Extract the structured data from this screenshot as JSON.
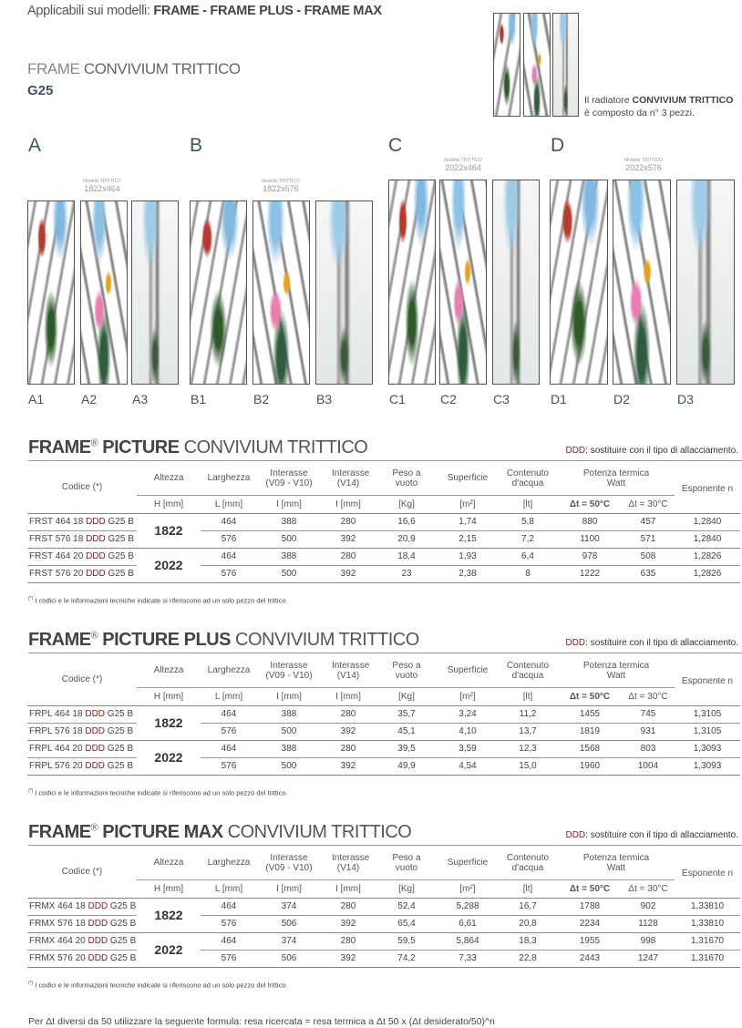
{
  "header": {
    "applicable_prefix": "Applicabili sui modelli: ",
    "applicable_models": "FRAME - FRAME PLUS - FRAME MAX",
    "title_light": "FRAME ",
    "title_bold": "CONVIVIUM TRITTICO",
    "subtitle": "G25"
  },
  "triptych_note": {
    "line1_prefix": "Il radiatore ",
    "line1_bold": "CONVIVIUM TRITTICO",
    "line2": "è composto da n° 3 pezzi."
  },
  "groups": [
    {
      "letter": "A",
      "model_label": "Modello TRITTICO",
      "size": "1822x464",
      "pieces": [
        "A1",
        "A2",
        "A3"
      ]
    },
    {
      "letter": "B",
      "model_label": "Modello TRITTICO",
      "size": "1822x576",
      "pieces": [
        "B1",
        "B2",
        "B3"
      ]
    },
    {
      "letter": "C",
      "model_label": "Modello TRITTICO",
      "size": "2022x464",
      "pieces": [
        "C1",
        "C2",
        "C3"
      ]
    },
    {
      "letter": "D",
      "model_label": "Modello TRITTICO",
      "size": "2022x576",
      "pieces": [
        "D1",
        "D2",
        "D3"
      ]
    }
  ],
  "ddd_note": {
    "code": "DDD",
    "text": ": sostituire con il tipo di allacciamento."
  },
  "columns": {
    "codice": "Codice (*)",
    "altezza": "Altezza",
    "larghezza": "Larghezza",
    "interasse1": "Interasse (V09 - V10)",
    "interasse2": "Interasse (V14)",
    "peso": "Peso a vuoto",
    "superficie": "Superficie",
    "contenuto": "Contenuto d'acqua",
    "potenza": "Potenza termica Watt",
    "esponente": "Esponente n",
    "units": [
      "H [mm]",
      "L [mm]",
      "I [mm]",
      "I [mm]",
      "[Kg]",
      "[m²]",
      "[lt]",
      "Δt = 50°C",
      "Δt = 30°C"
    ]
  },
  "footnote": {
    "mark": "(*)",
    "text": " I codici e le informazioni tecniche indicate si riferiscono ad un solo pezzo del trittico."
  },
  "tables": [
    {
      "title_brand": "FRAME",
      "reg": "®",
      "title_bold": " PICTURE",
      "title_light": " CONVIVIUM TRITTICO",
      "heights": [
        "1822",
        "2022"
      ],
      "rows": [
        {
          "pre": "FRST 464 18 ",
          "ddd": "DDD",
          "post": " G25 B",
          "values": [
            "464",
            "388",
            "280",
            "16,6",
            "1,74",
            "5,8",
            "880",
            "457",
            "1,2840"
          ]
        },
        {
          "pre": "FRST 576 18 ",
          "ddd": "DDD",
          "post": " G25 B",
          "values": [
            "576",
            "500",
            "392",
            "20,9",
            "2,15",
            "7,2",
            "1100",
            "571",
            "1,2840"
          ]
        },
        {
          "pre": "FRST 464 20 ",
          "ddd": "DDD",
          "post": " G25 B",
          "values": [
            "464",
            "388",
            "280",
            "18,4",
            "1,93",
            "6,4",
            "978",
            "508",
            "1,2826"
          ]
        },
        {
          "pre": "FRST 576 20 ",
          "ddd": "DDD",
          "post": " G25 B",
          "values": [
            "576",
            "500",
            "392",
            "23",
            "2,38",
            "8",
            "1222",
            "635",
            "1,2826"
          ]
        }
      ]
    },
    {
      "title_brand": "FRAME",
      "reg": "®",
      "title_bold": " PICTURE PLUS",
      "title_light": " CONVIVIUM TRITTICO",
      "heights": [
        "1822",
        "2022"
      ],
      "rows": [
        {
          "pre": "FRPL 464 18 ",
          "ddd": "DDD",
          "post": " G25 B",
          "values": [
            "464",
            "388",
            "280",
            "35,7",
            "3,24",
            "11,2",
            "1455",
            "745",
            "1,3105"
          ]
        },
        {
          "pre": "FRPL 576 18 ",
          "ddd": "DDD",
          "post": " G25 B",
          "values": [
            "576",
            "500",
            "392",
            "45,1",
            "4,10",
            "13,7",
            "1819",
            "931",
            "1,3105"
          ]
        },
        {
          "pre": "FRPL 464 20 ",
          "ddd": "DDD",
          "post": " G25 B",
          "values": [
            "464",
            "388",
            "280",
            "39,5",
            "3,59",
            "12,3",
            "1568",
            "803",
            "1,3093"
          ]
        },
        {
          "pre": "FRPL 576 20 ",
          "ddd": "DDD",
          "post": " G25 B",
          "values": [
            "576",
            "500",
            "392",
            "49,9",
            "4,54",
            "15,0",
            "1960",
            "1004",
            "1,3093"
          ]
        }
      ]
    },
    {
      "title_brand": "FRAME",
      "reg": "®",
      "title_bold": " PICTURE MAX",
      "title_light": " CONVIVIUM TRITTICO",
      "heights": [
        "1822",
        "2022"
      ],
      "rows": [
        {
          "pre": "FRMX 464 18 ",
          "ddd": "DDD",
          "post": " G25 B",
          "values": [
            "464",
            "374",
            "280",
            "52,4",
            "5,288",
            "16,7",
            "1788",
            "902",
            "1,33810"
          ]
        },
        {
          "pre": "FRMX 576 18 ",
          "ddd": "DDD",
          "post": " G25 B",
          "values": [
            "576",
            "506",
            "392",
            "65,4",
            "6,61",
            "20,8",
            "2234",
            "1128",
            "1,33810"
          ]
        },
        {
          "pre": "FRMX 464 20 ",
          "ddd": "DDD",
          "post": " G25 B",
          "values": [
            "464",
            "374",
            "280",
            "59,5",
            "5,864",
            "18,3",
            "1955",
            "998",
            "1,31670"
          ]
        },
        {
          "pre": "FRMX 576 20 ",
          "ddd": "DDD",
          "post": " G25 B",
          "values": [
            "576",
            "506",
            "392",
            "74,2",
            "7,33",
            "22,8",
            "2443",
            "1247",
            "1,31670"
          ]
        }
      ]
    }
  ],
  "formula": "Per Δt diversi da 50 utilizzare la seguente formula: resa ricercata = resa termica a Δt 50 x (Δt desiderato/50)^n"
}
